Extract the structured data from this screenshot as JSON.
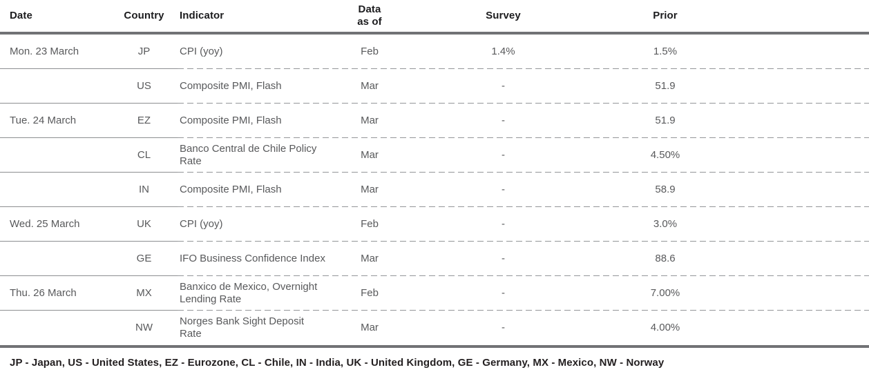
{
  "table": {
    "columns": {
      "date": "Date",
      "country": "Country",
      "indicator": "Indicator",
      "data_as_of": "Data\nas of",
      "survey": "Survey",
      "prior": "Prior"
    },
    "rows": [
      {
        "date": "Mon. 23 March",
        "country": "JP",
        "indicator": "CPI (yoy)",
        "data_as_of": "Feb",
        "survey": "1.4%",
        "prior": "1.5%"
      },
      {
        "date": "",
        "country": "US",
        "indicator": "Composite PMI, Flash",
        "data_as_of": "Mar",
        "survey": "-",
        "prior": "51.9"
      },
      {
        "date": "Tue. 24 March",
        "country": "EZ",
        "indicator": "Composite PMI, Flash",
        "data_as_of": "Mar",
        "survey": "-",
        "prior": "51.9"
      },
      {
        "date": "",
        "country": "CL",
        "indicator": "Banco Central de Chile Policy\nRate",
        "data_as_of": "Mar",
        "survey": "-",
        "prior": "4.50%"
      },
      {
        "date": "",
        "country": "IN",
        "indicator": "Composite PMI, Flash",
        "data_as_of": "Mar",
        "survey": "-",
        "prior": "58.9"
      },
      {
        "date": "Wed. 25 March",
        "country": "UK",
        "indicator": "CPI (yoy)",
        "data_as_of": "Feb",
        "survey": "-",
        "prior": "3.0%"
      },
      {
        "date": "",
        "country": "GE",
        "indicator": "IFO Business Confidence Index",
        "data_as_of": "Mar",
        "survey": "-",
        "prior": "88.6"
      },
      {
        "date": "Thu. 26 March",
        "country": "MX",
        "indicator": "Banxico de Mexico, Overnight\nLending Rate",
        "data_as_of": "Feb",
        "survey": "-",
        "prior": "7.00%"
      },
      {
        "date": "",
        "country": "NW",
        "indicator": "Norges Bank Sight Deposit\nRate",
        "data_as_of": "Mar",
        "survey": "-",
        "prior": "4.00%"
      }
    ]
  },
  "footer": {
    "legend": "JP - Japan, US - United States, EZ - Eurozone, CL - Chile, IN - India, UK - United Kingdom, GE - Germany, MX - Mexico, NW - Norway"
  },
  "colors": {
    "header_text": "#1c1c1e",
    "row_text": "#58595b",
    "thick_rule": "#717275",
    "solid_separator": "#8c8e90",
    "dashed_separator": "#939598"
  }
}
